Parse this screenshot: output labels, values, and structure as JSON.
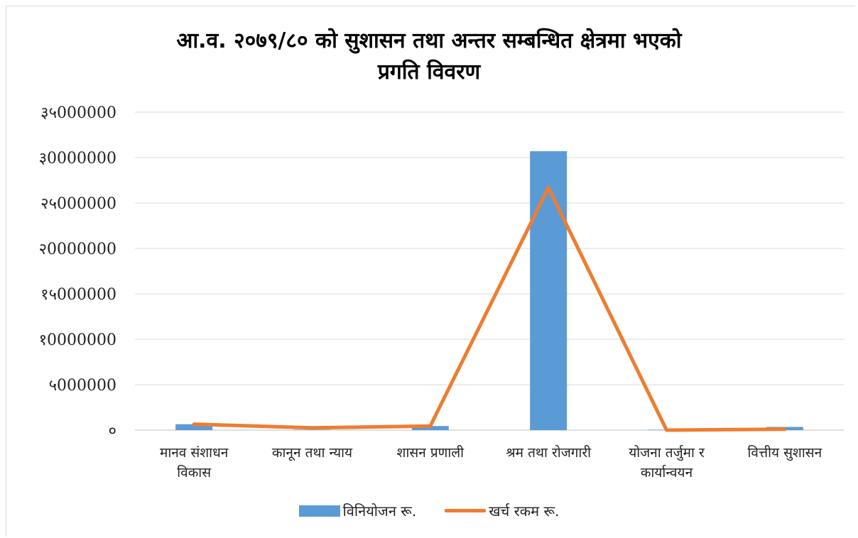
{
  "chart_data": {
    "type": "bar",
    "title": [
      "आ.व. २०७९/८० को सुशासन तथा अन्तर सम्बन्धित क्षेत्रमा भएको",
      "प्रगति विवरण"
    ],
    "categories": [
      [
        "मानव संशाधन",
        "विकास"
      ],
      [
        "कानून तथा न्याय"
      ],
      [
        "शासन प्रणाली"
      ],
      [
        "श्रम तथा रोजगारी"
      ],
      [
        "योजना तर्जुमा र",
        "कार्यान्वयन"
      ],
      [
        "वित्तीय सुशासन"
      ]
    ],
    "ylim": [
      0,
      35000000
    ],
    "yticks": [
      0,
      5000000,
      10000000,
      15000000,
      20000000,
      25000000,
      30000000,
      35000000
    ],
    "ytick_labels": [
      "०",
      "५000000",
      "१0000000",
      "१५000000",
      "२0000000",
      "२५000000",
      "३0000000",
      "३५000000"
    ],
    "grid": true,
    "legend_position": "bottom",
    "series": [
      {
        "name": "विनियोजन रू.",
        "kind": "bar",
        "color": "#5b9bd5",
        "values": [
          650000,
          50000,
          450000,
          30700000,
          50000,
          350000
        ]
      },
      {
        "name": "खर्च रकम रू.",
        "kind": "line",
        "color": "#ed7d31",
        "values": [
          650000,
          250000,
          450000,
          26700000,
          0,
          100000
        ]
      }
    ]
  }
}
